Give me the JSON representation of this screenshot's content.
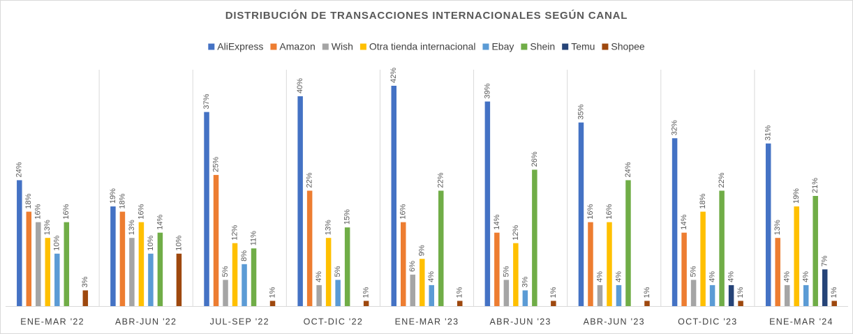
{
  "chart_data": {
    "type": "bar",
    "title": "DISTRIBUCIÓN DE TRANSACCIONES INTERNACIONALES SEGÚN CANAL",
    "categories": [
      "ENE-MAR '22",
      "ABR-JUN '22",
      "JUL-SEP '22",
      "OCT-DIC '22",
      "ENE-MAR '23",
      "ABR-JUN '23",
      "ABR-JUN '23",
      "OCT-DIC '23",
      "ENE-MAR '24"
    ],
    "series": [
      {
        "name": "AliExpress",
        "color": "#4472c4",
        "values": [
          24,
          19,
          37,
          40,
          42,
          39,
          35,
          32,
          31
        ],
        "value_labels": [
          "24%",
          "19%",
          "37%",
          "40%",
          "42%",
          "39%",
          "35%",
          "32%",
          "31%"
        ]
      },
      {
        "name": "Amazon",
        "color": "#ed7d31",
        "values": [
          18,
          18,
          25,
          22,
          16,
          14,
          16,
          14,
          13
        ],
        "value_labels": [
          "18%",
          "18%",
          "25%",
          "22%",
          "16%",
          "14%",
          "16%",
          "14%",
          "13%"
        ]
      },
      {
        "name": "Wish",
        "color": "#a5a5a5",
        "values": [
          16,
          13,
          5,
          4,
          6,
          5,
          4,
          5,
          4
        ],
        "value_labels": [
          "16%",
          "13%",
          "5%",
          "4%",
          "6%",
          "5%",
          "4%",
          "5%",
          "4%"
        ]
      },
      {
        "name": "Otra tienda internacional",
        "color": "#ffc000",
        "values": [
          13,
          16,
          12,
          13,
          9,
          12,
          16,
          18,
          19
        ],
        "value_labels": [
          "13%",
          "16%",
          "12%",
          "13%",
          "9%",
          "12%",
          "16%",
          "18%",
          "19%"
        ]
      },
      {
        "name": "Ebay",
        "color": "#5b9bd5",
        "values": [
          10,
          10,
          8,
          5,
          4,
          3,
          4,
          4,
          4
        ],
        "value_labels": [
          "10%",
          "10%",
          "8%",
          "5%",
          "4%",
          "3%",
          "4%",
          "4%",
          "4%"
        ]
      },
      {
        "name": "Shein",
        "color": "#70ad47",
        "values": [
          16,
          14,
          11,
          15,
          22,
          26,
          24,
          22,
          21
        ],
        "value_labels": [
          "16%",
          "14%",
          "11%",
          "15%",
          "22%",
          "26%",
          "24%",
          "22%",
          "21%"
        ]
      },
      {
        "name": "Temu",
        "color": "#264478",
        "values": [
          null,
          null,
          null,
          null,
          null,
          null,
          null,
          4,
          7
        ],
        "value_labels": [
          null,
          null,
          null,
          null,
          null,
          null,
          null,
          "4%",
          "7%"
        ]
      },
      {
        "name": "Shopee",
        "color": "#9e480e",
        "values": [
          3,
          10,
          1,
          1,
          1,
          1,
          1,
          1,
          1
        ],
        "value_labels": [
          "3%",
          "10%",
          "1%",
          "1%",
          "1%",
          "1%",
          "1%",
          "1%",
          "1%"
        ]
      }
    ]
  }
}
